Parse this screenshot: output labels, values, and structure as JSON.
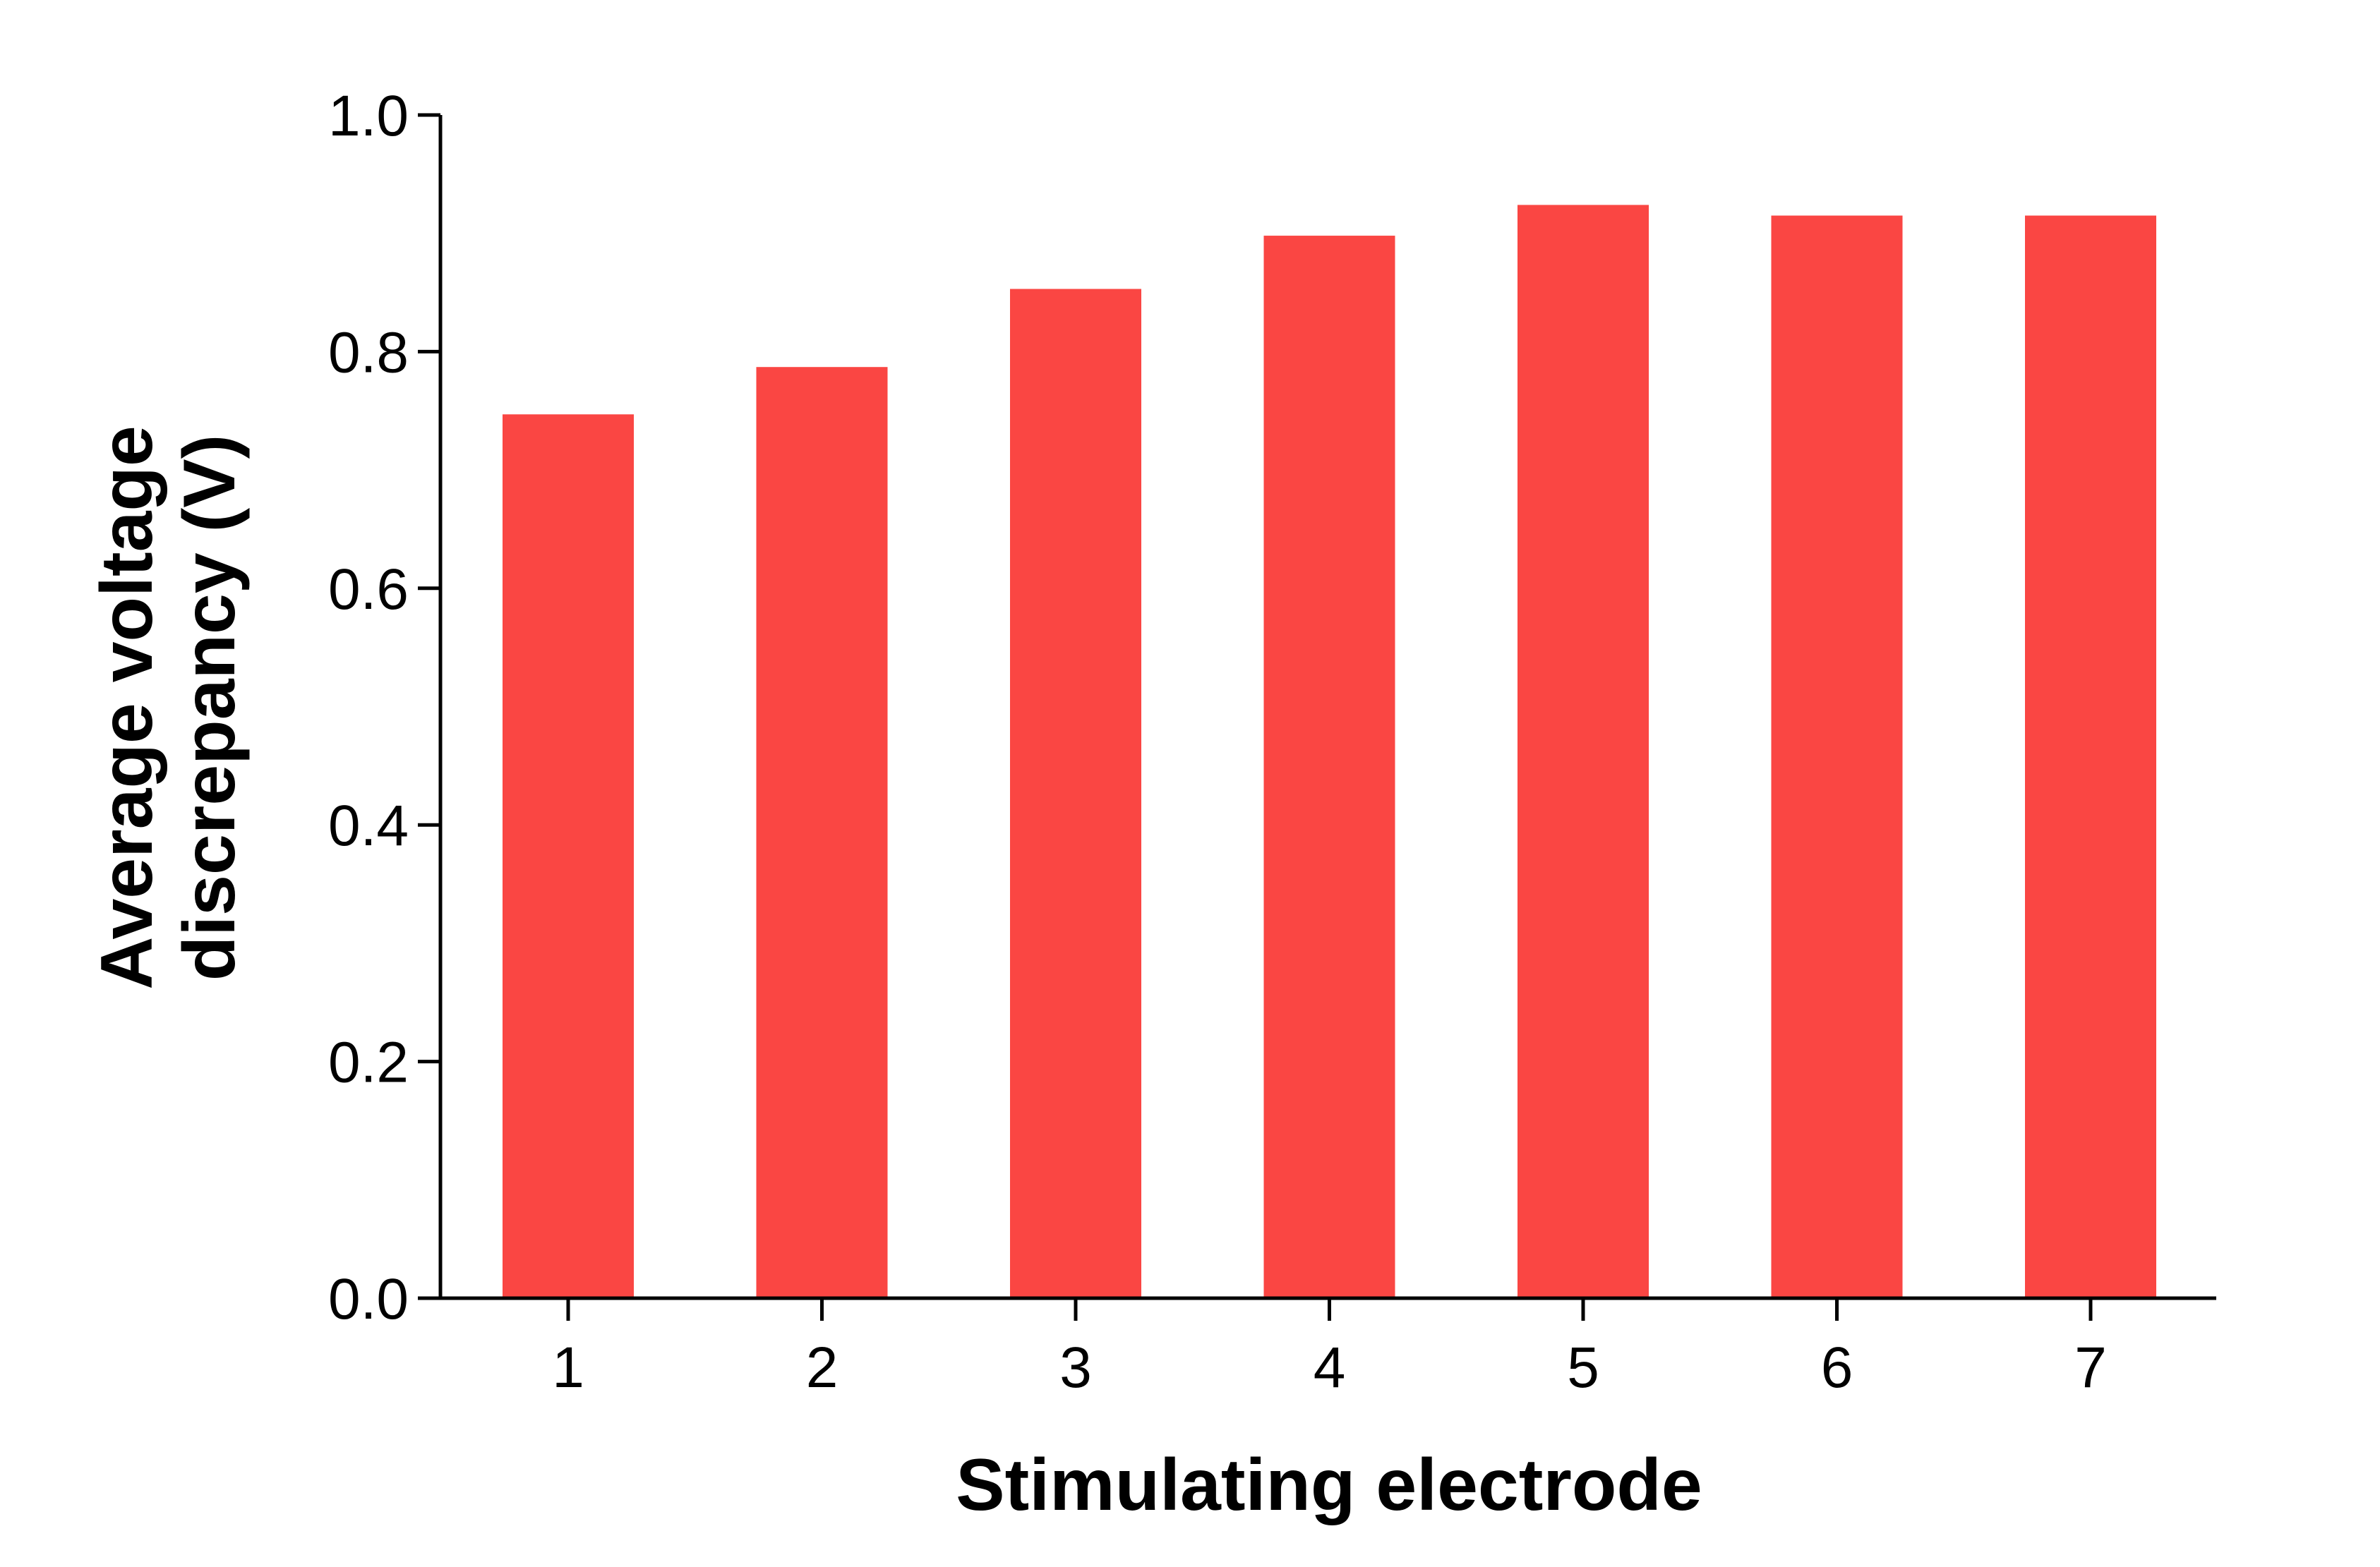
{
  "chart_data": {
    "type": "bar",
    "title": "",
    "xlabel": "Stimulating electrode",
    "ylabel_lines": [
      "Average voltage",
      "discrepancy (V)"
    ],
    "categories": [
      "1",
      "2",
      "3",
      "4",
      "5",
      "6",
      "7"
    ],
    "values": [
      0.747,
      0.787,
      0.853,
      0.898,
      0.924,
      0.915,
      0.915
    ],
    "ylim": [
      0.0,
      1.0
    ],
    "yticks": [
      "0.0",
      "0.2",
      "0.4",
      "0.6",
      "0.8",
      "1.0"
    ],
    "ytick_values": [
      0.0,
      0.2,
      0.4,
      0.6,
      0.8,
      1.0
    ],
    "bar_color": "#FA4643",
    "grid": false,
    "legend": "none"
  }
}
